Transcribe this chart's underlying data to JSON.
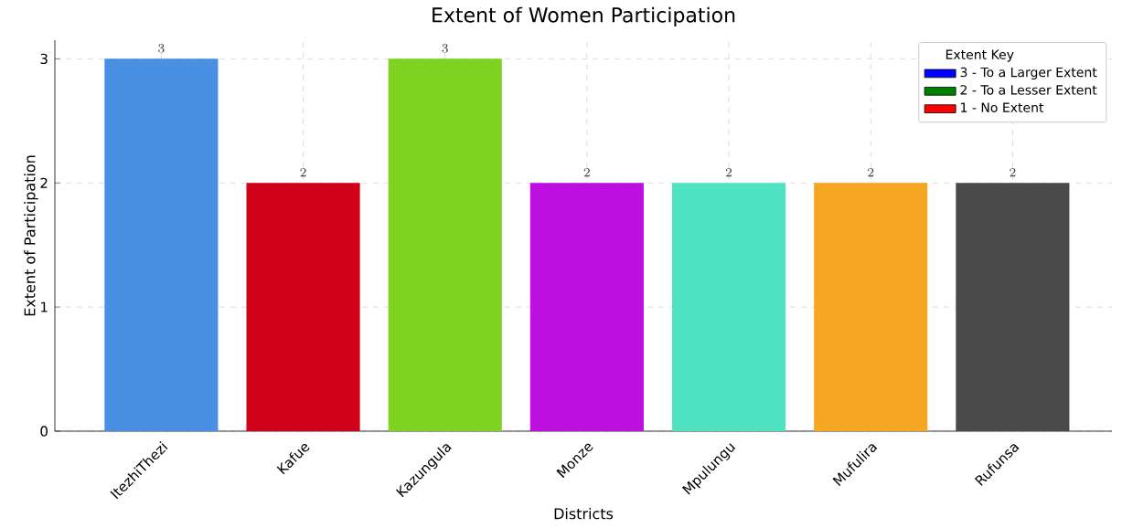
{
  "chart_data": {
    "type": "bar",
    "title": "Extent of Women Participation",
    "xlabel": "Districts",
    "ylabel": "Extent of Participation",
    "legend_title": "Extent Key",
    "categories": [
      "ItezhiThezi",
      "Kafue",
      "Kazungula",
      "Monze",
      "Mpulungu",
      "Mufulira",
      "Rufunsa"
    ],
    "ylim": [
      0,
      3.15
    ],
    "yticks": [
      0,
      1,
      2,
      3
    ],
    "grid": true,
    "legend": "top right",
    "data_labels": true,
    "series": [
      {
        "values": [
          3,
          2,
          3,
          2,
          2,
          2,
          2
        ],
        "colors": [
          "#4a90e2",
          "#d0021b",
          "#7ed321",
          "#bd10e0",
          "#50e3c2",
          "#f5a623",
          "#4a4a4a"
        ]
      },
      {
        "name": "3 - To a Larger Extent",
        "color": "#0000ff",
        "values": [
          null,
          null,
          null,
          null,
          null,
          null,
          null
        ]
      },
      {
        "name": "2 - To a Lesser Extent",
        "color": "#008000",
        "values": [
          null,
          null,
          null,
          null,
          null,
          null,
          null
        ]
      },
      {
        "name": "1 - No Extent",
        "color": "#ff0000",
        "values": [
          null,
          null,
          null,
          null,
          null,
          null,
          null
        ]
      }
    ]
  }
}
